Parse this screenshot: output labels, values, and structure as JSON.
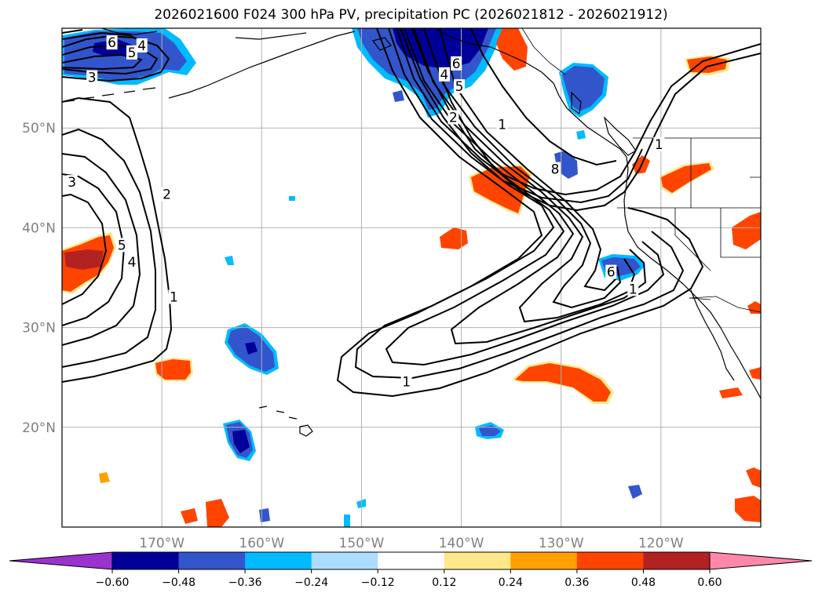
{
  "title": "2026021600 F024 300 hPa PV, precipitation PC (2026021812 - 2026021912)",
  "map": {
    "extent": {
      "lon_min": -180,
      "lon_max": -110,
      "lat_min": 10,
      "lat_max": 60
    },
    "gridlines": true,
    "lon_ticks": [
      {
        "value": -170,
        "label": "170°W"
      },
      {
        "value": -160,
        "label": "160°W"
      },
      {
        "value": -150,
        "label": "150°W"
      },
      {
        "value": -140,
        "label": "140°W"
      },
      {
        "value": -130,
        "label": "130°W"
      },
      {
        "value": -120,
        "label": "120°W"
      }
    ],
    "lat_ticks": [
      {
        "value": 20,
        "label": "20°N"
      },
      {
        "value": 30,
        "label": "30°N"
      },
      {
        "value": 40,
        "label": "40°N"
      },
      {
        "value": 50,
        "label": "50°N"
      }
    ],
    "tick_color": "#808080"
  },
  "contour_labels": [
    {
      "text": "6",
      "lon": -175,
      "lat": 58.5
    },
    {
      "text": "5",
      "lon": -173,
      "lat": 57.5
    },
    {
      "text": "4",
      "lon": -172,
      "lat": 58.2
    },
    {
      "text": "3",
      "lon": -177,
      "lat": 55.0
    },
    {
      "text": "3",
      "lon": -179,
      "lat": 44.5
    },
    {
      "text": "2",
      "lon": -169.5,
      "lat": 43.3
    },
    {
      "text": "5",
      "lon": -174,
      "lat": 38.2
    },
    {
      "text": "4",
      "lon": -173,
      "lat": 36.5
    },
    {
      "text": "1",
      "lon": -168.8,
      "lat": 33.0
    },
    {
      "text": "6",
      "lon": -140.5,
      "lat": 56.4
    },
    {
      "text": "4",
      "lon": -141.7,
      "lat": 55.3
    },
    {
      "text": "5",
      "lon": -140.2,
      "lat": 54.1
    },
    {
      "text": "2",
      "lon": -140.8,
      "lat": 51.0
    },
    {
      "text": "1",
      "lon": -135.9,
      "lat": 50.3
    },
    {
      "text": "8",
      "lon": -130.6,
      "lat": 45.8
    },
    {
      "text": "1",
      "lon": -120.2,
      "lat": 48.3
    },
    {
      "text": "6",
      "lon": -125.0,
      "lat": 35.5
    },
    {
      "text": "1",
      "lon": -122.8,
      "lat": 33.8
    },
    {
      "text": "1",
      "lon": -145.5,
      "lat": 24.5
    }
  ],
  "colorbar": {
    "ticks": [
      "−0.60",
      "−0.48",
      "−0.36",
      "−0.24",
      "−0.12",
      "0.12",
      "0.24",
      "0.36",
      "0.48",
      "0.60"
    ],
    "colors": [
      "#9933cc",
      "#000099",
      "#3355cc",
      "#00bbff",
      "#aaddff",
      "#ffffff",
      "#ffe888",
      "#ffa000",
      "#ff4400",
      "#b22222",
      "#ff88aa"
    ],
    "extend": "both"
  },
  "palette": {
    "coast": "#000000",
    "grid": "#b0b0b0",
    "contour": "#000000"
  }
}
